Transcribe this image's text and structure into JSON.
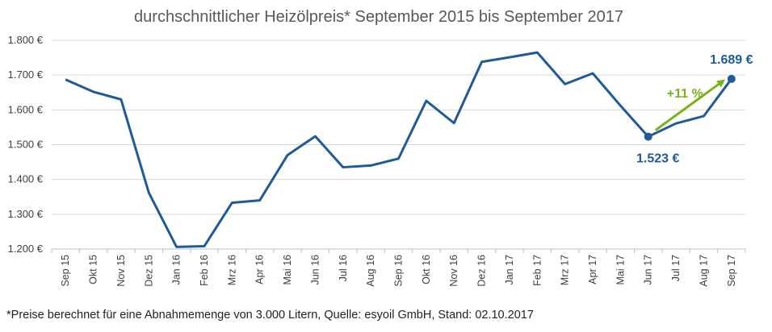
{
  "chart_data": {
    "type": "line",
    "title": "durchschnittlicher Heizölpreis* September 2015 bis September 2017",
    "xlabel": "",
    "ylabel": "",
    "ylim": [
      1200,
      1800
    ],
    "yticks": [
      1200,
      1300,
      1400,
      1500,
      1600,
      1700,
      1800
    ],
    "ytick_labels": [
      "1.200 €",
      "1.300 €",
      "1.400 €",
      "1.500 €",
      "1.600 €",
      "1.700 €",
      "1.800 €"
    ],
    "grid": "horizontal",
    "categories": [
      "Sep 15",
      "Okt 15",
      "Nov 15",
      "Dez 15",
      "Jan 16",
      "Feb 16",
      "Mrz 16",
      "Apr 16",
      "Mai 16",
      "Jun 16",
      "Jul 16",
      "Aug 16",
      "Sep 16",
      "Okt 16",
      "Nov 16",
      "Dez 16",
      "Jan 17",
      "Feb 17",
      "Mrz 17",
      "Apr 17",
      "Mai 17",
      "Jun 17",
      "Jul 17",
      "Aug 17",
      "Sep 17"
    ],
    "series": [
      {
        "values": [
          1687,
          1652,
          1630,
          1362,
          1206,
          1208,
          1333,
          1340,
          1470,
          1524,
          1435,
          1440,
          1460,
          1626,
          1562,
          1738,
          1751,
          1765,
          1674,
          1705,
          1612,
          1523,
          1561,
          1582,
          1689
        ],
        "color": "#1f5a99"
      }
    ],
    "annotations": [
      {
        "label": "1.523 €",
        "category": "Jun 17",
        "value": 1523,
        "color": "#1f5a99"
      },
      {
        "label": "1.689 €",
        "category": "Sep 17",
        "value": 1689,
        "color": "#1f5a99"
      },
      {
        "label": "+11 %",
        "from_category": "Jun 17",
        "to_category": "Sep 17",
        "color": "#7ab317"
      }
    ]
  },
  "footnote": "*Preise berechnet für eine Abnahmemenge von 3.000 Litern, Quelle: esyoil GmbH, Stand: 02.10.2017"
}
